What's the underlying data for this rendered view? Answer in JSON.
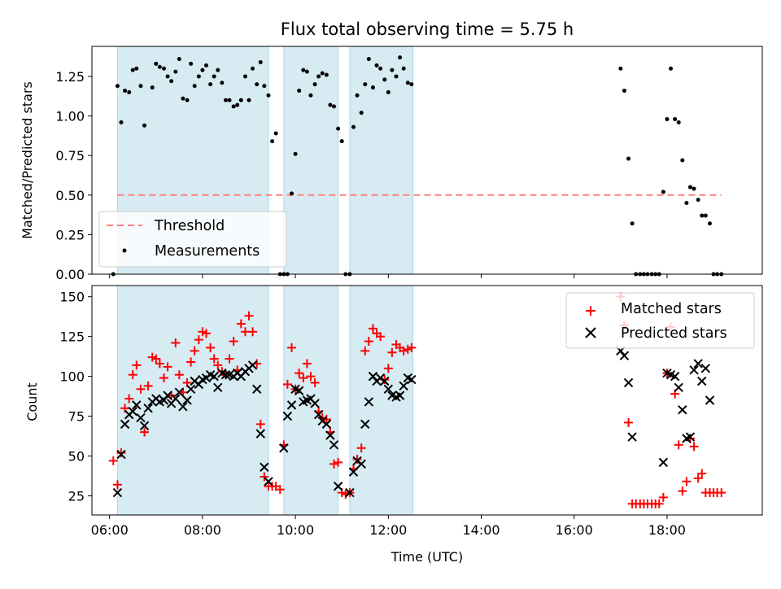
{
  "chart_data": [
    {
      "type": "scatter",
      "title": "Flux total observing time = 5.75 h",
      "xlabel": "",
      "ylabel": "Matched/Predicted stars",
      "xlim": [
        5.62,
        20.05
      ],
      "ylim": [
        0.0,
        1.44
      ],
      "yticks": [
        0.0,
        0.25,
        0.5,
        0.75,
        1.0,
        1.25
      ],
      "ytick_labels": [
        "0.00",
        "0.25",
        "0.50",
        "0.75",
        "1.00",
        "1.25"
      ],
      "grid": false,
      "legend_position": "lower-left",
      "shaded_intervals": [
        [
          6.17,
          9.42
        ],
        [
          9.75,
          10.92
        ],
        [
          11.17,
          12.53
        ]
      ],
      "shade_color": "#add8e6",
      "series": [
        {
          "name": "Threshold",
          "kind": "line",
          "style": "dashed",
          "color": "#ff7f7f",
          "x": [
            6.17,
            19.17
          ],
          "y": [
            0.5,
            0.5
          ]
        },
        {
          "name": "Measurements",
          "kind": "scatter",
          "marker": "dot",
          "color": "#000000",
          "x": [
            6.08,
            6.17,
            6.25,
            6.33,
            6.42,
            6.5,
            6.58,
            6.67,
            6.75,
            6.92,
            7.0,
            7.08,
            7.17,
            7.25,
            7.33,
            7.42,
            7.5,
            7.58,
            7.67,
            7.75,
            7.83,
            7.92,
            8.0,
            8.08,
            8.17,
            8.25,
            8.33,
            8.42,
            8.5,
            8.58,
            8.67,
            8.75,
            8.83,
            8.92,
            9.0,
            9.08,
            9.17,
            9.25,
            9.33,
            9.42,
            9.5,
            9.58,
            9.67,
            9.75,
            9.83,
            9.92,
            10.0,
            10.08,
            10.17,
            10.25,
            10.33,
            10.42,
            10.5,
            10.58,
            10.67,
            10.75,
            10.83,
            10.92,
            11.0,
            11.08,
            11.17,
            11.25,
            11.33,
            11.42,
            11.5,
            11.58,
            11.67,
            11.75,
            11.83,
            11.92,
            12.0,
            12.08,
            12.17,
            12.25,
            12.33,
            12.42,
            12.5,
            17.0,
            17.08,
            17.17,
            17.25,
            17.33,
            17.42,
            17.5,
            17.58,
            17.67,
            17.75,
            17.83,
            17.92,
            18.0,
            18.08,
            18.17,
            18.25,
            18.33,
            18.42,
            18.5,
            18.58,
            18.67,
            18.75,
            18.83,
            18.92,
            19.0,
            19.08,
            19.17
          ],
          "y": [
            0.0,
            1.19,
            0.96,
            1.16,
            1.15,
            1.29,
            1.3,
            1.19,
            0.94,
            1.18,
            1.33,
            1.31,
            1.3,
            1.25,
            1.22,
            1.28,
            1.36,
            1.11,
            1.1,
            1.33,
            1.19,
            1.25,
            1.29,
            1.32,
            1.2,
            1.25,
            1.29,
            1.21,
            1.1,
            1.1,
            1.06,
            1.07,
            1.1,
            1.25,
            1.1,
            1.3,
            1.2,
            1.34,
            1.19,
            1.13,
            0.84,
            0.89,
            0.0,
            0.0,
            0.0,
            0.51,
            0.76,
            1.16,
            1.29,
            1.28,
            1.13,
            1.2,
            1.25,
            1.27,
            1.26,
            1.07,
            1.06,
            0.92,
            0.84,
            0.0,
            0.0,
            0.93,
            1.13,
            1.02,
            1.2,
            1.36,
            1.18,
            1.32,
            1.3,
            1.23,
            1.15,
            1.29,
            1.25,
            1.37,
            1.3,
            1.21,
            1.2,
            1.3,
            1.16,
            0.73,
            0.32,
            0.0,
            0.0,
            0.0,
            0.0,
            0.0,
            0.0,
            0.0,
            0.52,
            0.98,
            1.3,
            0.98,
            0.96,
            0.72,
            0.45,
            0.55,
            0.54,
            0.47,
            0.37,
            0.37,
            0.32,
            0.0,
            0.0,
            0.0
          ]
        }
      ]
    },
    {
      "type": "scatter",
      "title": "",
      "xlabel": "Time (UTC)",
      "ylabel": "Count",
      "xlim": [
        5.62,
        20.05
      ],
      "ylim": [
        13,
        157
      ],
      "xticks": [
        6,
        8,
        10,
        12,
        14,
        16,
        18
      ],
      "xtick_labels": [
        "06:00",
        "08:00",
        "10:00",
        "12:00",
        "14:00",
        "16:00",
        "18:00"
      ],
      "yticks": [
        25,
        50,
        75,
        100,
        125,
        150
      ],
      "ytick_labels": [
        "25",
        "50",
        "75",
        "100",
        "125",
        "150"
      ],
      "grid": false,
      "legend_position": "upper-right",
      "shaded_intervals": [
        [
          6.17,
          9.42
        ],
        [
          9.75,
          10.92
        ],
        [
          11.17,
          12.53
        ]
      ],
      "shade_color": "#add8e6",
      "series": [
        {
          "name": "Matched stars",
          "marker": "plus",
          "color": "#ff0000",
          "x": [
            6.08,
            6.17,
            6.25,
            6.33,
            6.42,
            6.5,
            6.58,
            6.67,
            6.75,
            6.83,
            6.92,
            7.0,
            7.08,
            7.17,
            7.25,
            7.33,
            7.42,
            7.5,
            7.58,
            7.67,
            7.75,
            7.83,
            7.92,
            8.0,
            8.08,
            8.17,
            8.25,
            8.33,
            8.42,
            8.5,
            8.58,
            8.67,
            8.75,
            8.83,
            8.92,
            9.0,
            9.08,
            9.17,
            9.25,
            9.33,
            9.42,
            9.5,
            9.58,
            9.67,
            9.75,
            9.83,
            9.92,
            10.0,
            10.08,
            10.17,
            10.25,
            10.33,
            10.42,
            10.5,
            10.58,
            10.67,
            10.75,
            10.83,
            10.92,
            11.0,
            11.08,
            11.17,
            11.25,
            11.33,
            11.42,
            11.5,
            11.58,
            11.67,
            11.75,
            11.83,
            11.92,
            12.0,
            12.08,
            12.17,
            12.25,
            12.33,
            12.42,
            12.5,
            17.0,
            17.08,
            17.17,
            17.25,
            17.33,
            17.42,
            17.5,
            17.58,
            17.67,
            17.75,
            17.83,
            17.92,
            18.0,
            18.08,
            18.17,
            18.25,
            18.33,
            18.42,
            18.5,
            18.58,
            18.67,
            18.75,
            18.83,
            18.92,
            19.0,
            19.08,
            19.17
          ],
          "y": [
            47,
            32,
            52,
            80,
            86,
            101,
            107,
            92,
            65,
            94,
            112,
            111,
            108,
            99,
            106,
            88,
            121,
            101,
            90,
            96,
            109,
            116,
            123,
            128,
            127,
            118,
            111,
            107,
            103,
            101,
            111,
            122,
            104,
            133,
            128,
            138,
            128,
            108,
            70,
            37,
            31,
            31,
            31,
            29,
            57,
            95,
            118,
            92,
            102,
            99,
            108,
            100,
            96,
            78,
            74,
            73,
            65,
            45,
            46,
            27,
            26,
            27,
            42,
            48,
            55,
            116,
            122,
            130,
            127,
            125,
            98,
            105,
            115,
            120,
            118,
            116,
            117,
            118,
            150,
            132,
            71,
            20,
            20,
            20,
            20,
            20,
            20,
            20,
            20,
            24,
            102,
            131,
            89,
            57,
            28,
            34,
            61,
            56,
            36,
            39,
            27,
            27,
            27,
            27,
            27
          ]
        },
        {
          "name": "Predicted stars",
          "marker": "x",
          "color": "#000000",
          "x": [
            6.17,
            6.25,
            6.33,
            6.42,
            6.5,
            6.58,
            6.67,
            6.75,
            6.83,
            6.92,
            7.0,
            7.08,
            7.17,
            7.25,
            7.33,
            7.42,
            7.5,
            7.58,
            7.67,
            7.75,
            7.83,
            7.92,
            8.0,
            8.08,
            8.17,
            8.25,
            8.33,
            8.42,
            8.5,
            8.58,
            8.67,
            8.75,
            8.83,
            8.92,
            9.0,
            9.08,
            9.17,
            9.25,
            9.33,
            9.42,
            9.75,
            9.83,
            9.92,
            10.0,
            10.08,
            10.17,
            10.25,
            10.33,
            10.42,
            10.5,
            10.58,
            10.67,
            10.75,
            10.83,
            10.92,
            11.17,
            11.25,
            11.33,
            11.42,
            11.5,
            11.58,
            11.67,
            11.75,
            11.83,
            11.92,
            12.0,
            12.08,
            12.17,
            12.25,
            12.33,
            12.42,
            12.5,
            17.0,
            17.08,
            17.17,
            17.25,
            17.92,
            18.0,
            18.08,
            18.17,
            18.25,
            18.33,
            18.42,
            18.5,
            18.58,
            18.67,
            18.75,
            18.83,
            18.92
          ],
          "y": [
            27,
            51,
            70,
            76,
            78,
            82,
            74,
            69,
            80,
            84,
            86,
            84,
            85,
            88,
            83,
            86,
            90,
            81,
            85,
            92,
            97,
            95,
            98,
            99,
            101,
            100,
            93,
            102,
            101,
            101,
            100,
            102,
            100,
            103,
            105,
            107,
            92,
            64,
            43,
            34,
            55,
            75,
            82,
            92,
            91,
            84,
            85,
            86,
            83,
            76,
            72,
            70,
            63,
            57,
            31,
            27,
            40,
            47,
            45,
            70,
            84,
            100,
            97,
            99,
            97,
            92,
            88,
            87,
            88,
            94,
            99,
            98,
            116,
            113,
            96,
            62,
            46,
            102,
            101,
            100,
            93,
            79,
            61,
            62,
            104,
            108,
            97,
            105,
            85
          ]
        }
      ]
    }
  ]
}
